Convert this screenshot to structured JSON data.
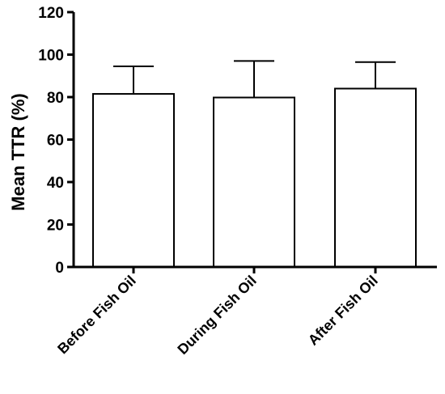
{
  "chart_data": {
    "type": "bar",
    "categories": [
      "Before Fish Oil",
      "During Fish Oil",
      "After Fish Oil"
    ],
    "values": [
      81.5,
      79.8,
      84.0
    ],
    "error_upper": [
      94.5,
      97.0,
      96.5
    ],
    "ylabel": "Mean TTR (%)",
    "xlabel": "",
    "title": "",
    "ylim": [
      0,
      120
    ],
    "yticks": [
      0,
      20,
      40,
      60,
      80,
      100,
      120
    ],
    "grid": false,
    "bar_fill": "#ffffff",
    "bar_stroke": "#000000"
  }
}
